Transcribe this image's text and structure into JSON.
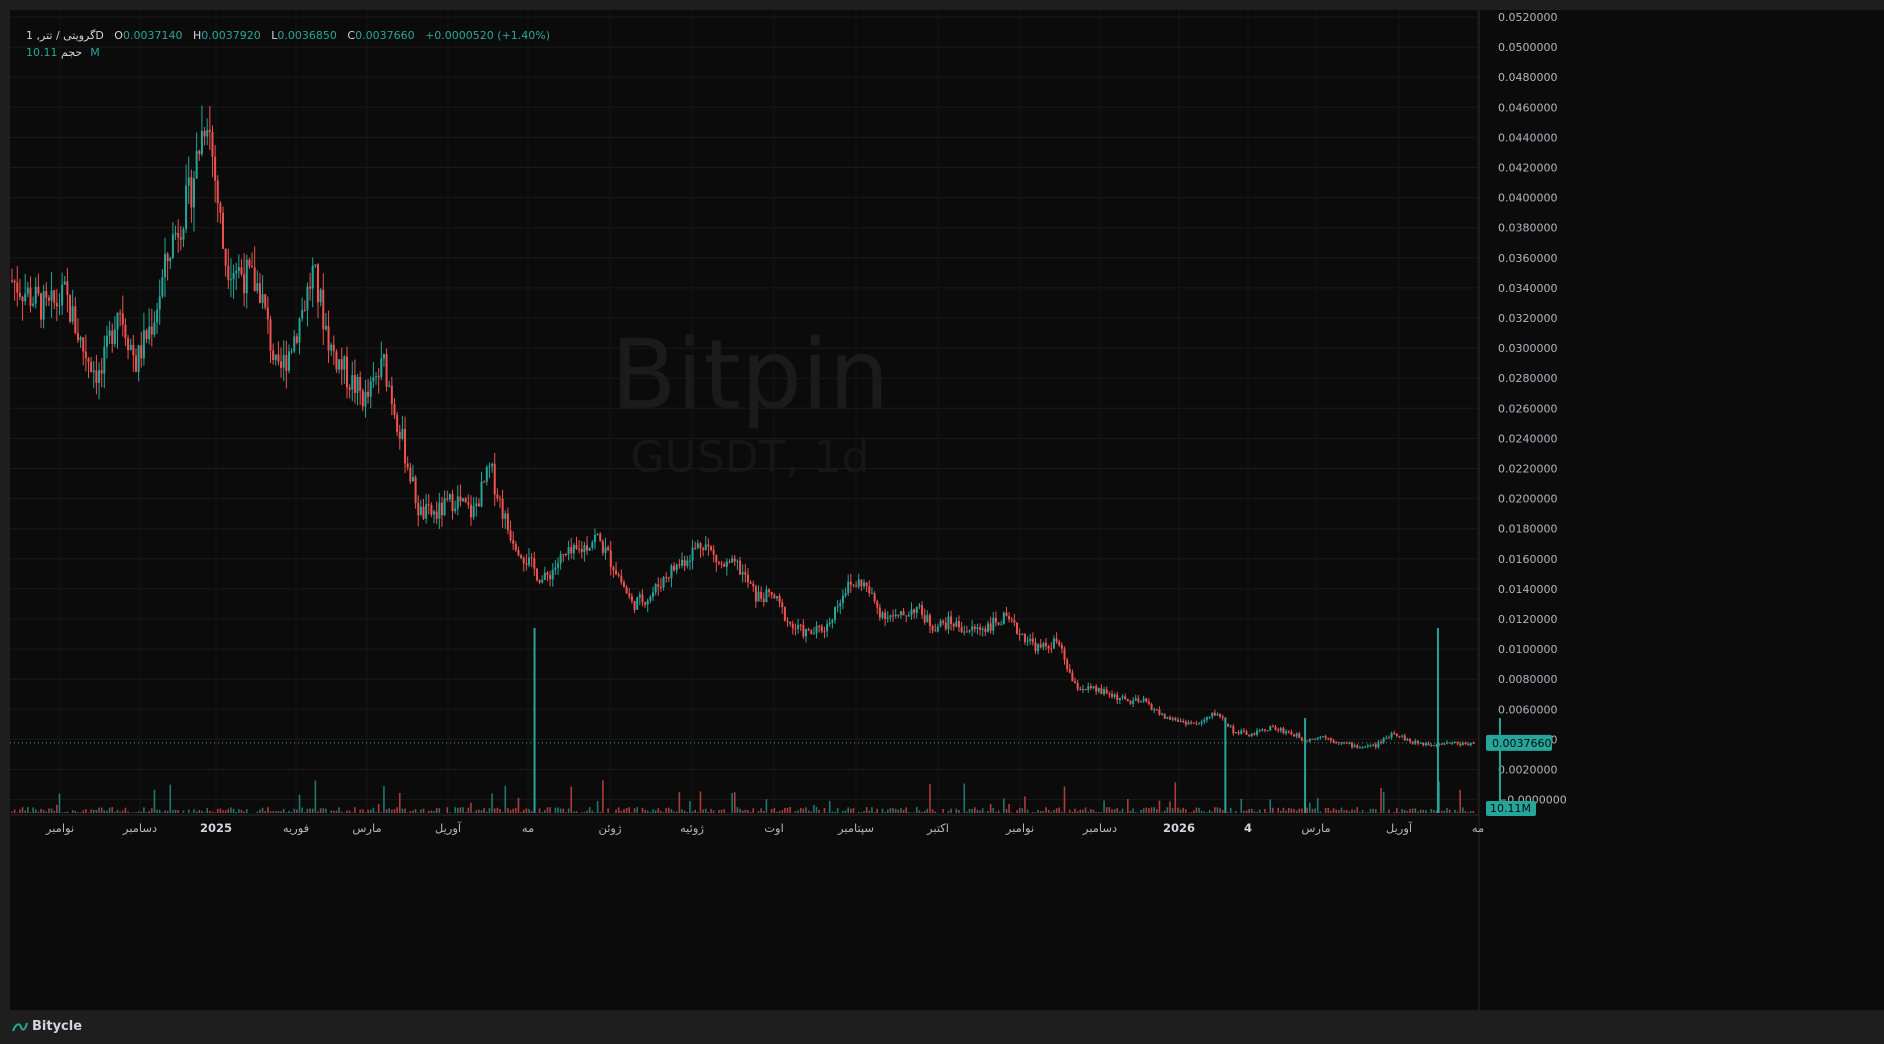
{
  "legend": {
    "symbol": "گرویتی / تتر, 1D",
    "open_key": "O",
    "open": "0.0037140",
    "high_key": "H",
    "high": "0.0037920",
    "low_key": "L",
    "low": "0.0036850",
    "close_key": "C",
    "close": "0.0037660",
    "change": "+0.0000520 (+1.40%)",
    "volume_label": "حجم",
    "volume": "10.11M"
  },
  "watermark": {
    "brand": "Bitpin",
    "pair": "GUSDT, 1d"
  },
  "price_tag": "0.0037660",
  "volume_tag": "10.11M",
  "footer": {
    "brand": "Bitycle"
  },
  "colors": {
    "up": "#26a69a",
    "down": "#ef5350",
    "background": "#0b0b0b",
    "grid": "#1a1a1a"
  },
  "chart_data": {
    "type": "candlestick",
    "y_axis": {
      "ticks": [
        "0.0520000",
        "0.0500000",
        "0.0480000",
        "0.0460000",
        "0.0440000",
        "0.0420000",
        "0.0400000",
        "0.0380000",
        "0.0360000",
        "0.0340000",
        "0.0320000",
        "0.0300000",
        "0.0280000",
        "0.0260000",
        "0.0240000",
        "0.0220000",
        "0.0200000",
        "0.0180000",
        "0.0160000",
        "0.0140000",
        "0.0120000",
        "0.0100000",
        "0.0080000",
        "0.0060000",
        "0.0040000",
        "0.0020000",
        "−0.0000000"
      ],
      "range": [
        0,
        0.052
      ]
    },
    "x_axis": {
      "labels": [
        {
          "text": "نوامبر",
          "bold": false
        },
        {
          "text": "دسامبر",
          "bold": false
        },
        {
          "text": "2025",
          "bold": true
        },
        {
          "text": "فوریه",
          "bold": false
        },
        {
          "text": "مارس",
          "bold": false
        },
        {
          "text": "آوریل",
          "bold": false
        },
        {
          "text": "مه",
          "bold": false
        },
        {
          "text": "ژوئن",
          "bold": false
        },
        {
          "text": "ژوئیه",
          "bold": false
        },
        {
          "text": "اوت",
          "bold": false
        },
        {
          "text": "سپتامبر",
          "bold": false
        },
        {
          "text": "اکتبر",
          "bold": false
        },
        {
          "text": "نوامبر",
          "bold": false
        },
        {
          "text": "دسامبر",
          "bold": false
        },
        {
          "text": "2026",
          "bold": true
        },
        {
          "text": "4",
          "bold": true
        },
        {
          "text": "مارس",
          "bold": false
        },
        {
          "text": "آوریل",
          "bold": false
        },
        {
          "text": "مه",
          "bold": false
        }
      ]
    },
    "price_path": [
      [
        0,
        0.0345
      ],
      [
        4,
        0.0325
      ],
      [
        6,
        0.0335
      ],
      [
        8,
        0.03
      ],
      [
        10,
        0.028
      ],
      [
        12,
        0.033
      ],
      [
        14,
        0.029
      ],
      [
        16,
        0.032
      ],
      [
        18,
        0.037
      ],
      [
        20,
        0.04
      ],
      [
        22,
        0.046
      ],
      [
        24,
        0.036
      ],
      [
        26,
        0.035
      ],
      [
        28,
        0.034
      ],
      [
        30,
        0.028
      ],
      [
        32,
        0.031
      ],
      [
        34,
        0.035
      ],
      [
        36,
        0.03
      ],
      [
        38,
        0.028
      ],
      [
        40,
        0.0265
      ],
      [
        42,
        0.029
      ],
      [
        44,
        0.024
      ],
      [
        46,
        0.019
      ],
      [
        48,
        0.019
      ],
      [
        50,
        0.02
      ],
      [
        52,
        0.019
      ],
      [
        54,
        0.022
      ],
      [
        56,
        0.018
      ],
      [
        58,
        0.016
      ],
      [
        60,
        0.0145
      ],
      [
        62,
        0.016
      ],
      [
        64,
        0.0165
      ],
      [
        66,
        0.0175
      ],
      [
        68,
        0.0155
      ],
      [
        70,
        0.013
      ],
      [
        72,
        0.0135
      ],
      [
        74,
        0.015
      ],
      [
        76,
        0.016
      ],
      [
        78,
        0.0172
      ],
      [
        80,
        0.0155
      ],
      [
        82,
        0.0155
      ],
      [
        84,
        0.0135
      ],
      [
        86,
        0.0135
      ],
      [
        88,
        0.0115
      ],
      [
        90,
        0.011
      ],
      [
        92,
        0.0115
      ],
      [
        94,
        0.014
      ],
      [
        96,
        0.0145
      ],
      [
        98,
        0.0125
      ],
      [
        100,
        0.012
      ],
      [
        102,
        0.0128
      ],
      [
        104,
        0.0115
      ],
      [
        106,
        0.0118
      ],
      [
        108,
        0.0112
      ],
      [
        110,
        0.0115
      ],
      [
        112,
        0.012
      ],
      [
        114,
        0.011
      ],
      [
        116,
        0.01
      ],
      [
        118,
        0.0105
      ],
      [
        120,
        0.0075
      ],
      [
        122,
        0.0073
      ],
      [
        124,
        0.007
      ],
      [
        126,
        0.0065
      ],
      [
        128,
        0.0065
      ],
      [
        130,
        0.0055
      ],
      [
        132,
        0.0052
      ],
      [
        134,
        0.005
      ],
      [
        136,
        0.0058
      ],
      [
        138,
        0.0045
      ],
      [
        140,
        0.0043
      ],
      [
        142,
        0.0048
      ],
      [
        144,
        0.0045
      ],
      [
        146,
        0.004
      ],
      [
        148,
        0.0042
      ],
      [
        150,
        0.0038
      ],
      [
        152,
        0.0035
      ],
      [
        154,
        0.0036
      ],
      [
        156,
        0.0045
      ],
      [
        158,
        0.0038
      ],
      [
        160,
        0.0037
      ],
      [
        162,
        0.0038
      ],
      [
        164,
        0.0037
      ],
      [
        165,
        0.00377
      ]
    ],
    "volume_spikes": [
      {
        "pos": 59,
        "value": "high"
      },
      {
        "pos": 137,
        "value": "mid"
      },
      {
        "pos": 146,
        "value": "mid"
      },
      {
        "pos": 161,
        "value": "high"
      },
      {
        "pos": 168,
        "value": "mid"
      }
    ]
  }
}
